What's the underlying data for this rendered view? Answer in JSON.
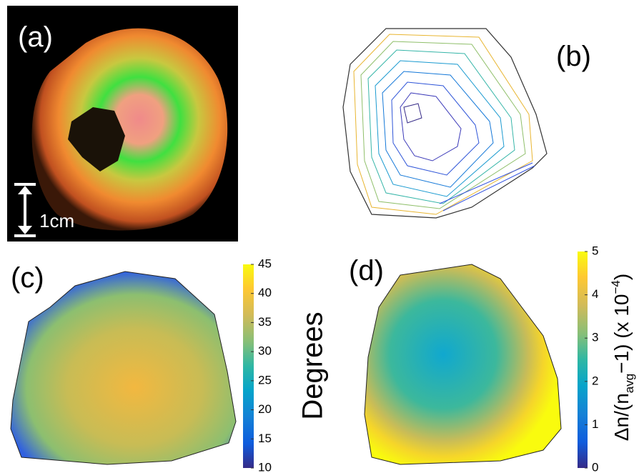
{
  "panels": [
    {
      "label": "(a)",
      "scale_label": "1cm"
    },
    {
      "label": "(b)"
    },
    {
      "label": "(c)",
      "colorbar": {
        "label": "Degrees",
        "lim": [
          10,
          45
        ],
        "ticks": [
          10,
          15,
          20,
          25,
          30,
          35,
          40,
          45
        ]
      }
    },
    {
      "label": "(d)",
      "colorbar": {
        "label": {
          "prefix": "Δn/(n",
          "sub": "avg",
          "mid": "−1) (x 10",
          "sup": "−4",
          "suffix": ")"
        },
        "lim": [
          0,
          5
        ],
        "ticks": [
          0,
          1,
          2,
          3,
          4,
          5
        ]
      }
    }
  ]
}
